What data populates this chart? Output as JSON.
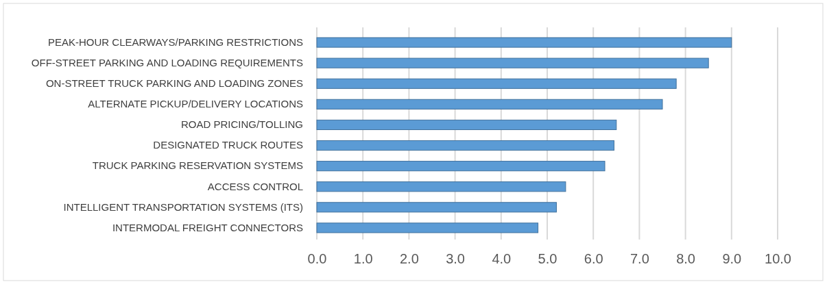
{
  "chart_data": {
    "type": "bar",
    "orientation": "horizontal",
    "categories": [
      "PEAK-HOUR CLEARWAYS/PARKING RESTRICTIONS",
      "OFF-STREET PARKING AND LOADING REQUIREMENTS",
      "ON-STREET TRUCK PARKING AND LOADING ZONES",
      "ALTERNATE PICKUP/DELIVERY LOCATIONS",
      "ROAD PRICING/TOLLING",
      "DESIGNATED TRUCK ROUTES",
      "TRUCK PARKING RESERVATION SYSTEMS",
      "ACCESS CONTROL",
      "INTELLIGENT TRANSPORTATION SYSTEMS (ITS)",
      "INTERMODAL FREIGHT CONNECTORS"
    ],
    "values": [
      9.0,
      8.5,
      7.8,
      7.5,
      6.5,
      6.45,
      6.25,
      5.4,
      5.2,
      4.8
    ],
    "color": "#5b9bd5",
    "xlim": [
      0,
      10
    ],
    "xticks": [
      {
        "value": 0,
        "label": "0.0"
      },
      {
        "value": 1,
        "label": "1.0"
      },
      {
        "value": 2,
        "label": "2.0"
      },
      {
        "value": 3,
        "label": "3.0"
      },
      {
        "value": 4,
        "label": "4.0"
      },
      {
        "value": 5,
        "label": "5.0"
      },
      {
        "value": 6,
        "label": "6.0"
      },
      {
        "value": 7,
        "label": "7.0"
      },
      {
        "value": 8,
        "label": "8.0"
      },
      {
        "value": 9,
        "label": "9.0"
      },
      {
        "value": 10,
        "label": "10.0"
      }
    ],
    "grid": "x"
  }
}
